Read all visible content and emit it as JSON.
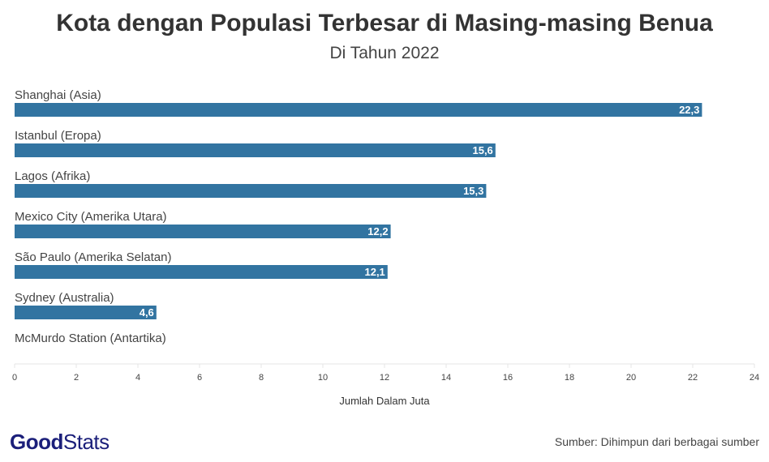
{
  "title": "Kota dengan Populasi Terbesar di Masing-masing Benua",
  "subtitle": "Di Tahun 2022",
  "source": "Sumber: Dihimpun dari berbagai sumber",
  "logo": {
    "part1": "Good",
    "part2": "Stats"
  },
  "chart_data": {
    "type": "bar",
    "orientation": "horizontal",
    "categories": [
      "Shanghai (Asia)",
      "Istanbul (Eropa)",
      "Lagos (Afrika)",
      "Mexico City (Amerika Utara)",
      "São Paulo (Amerika Selatan)",
      "Sydney (Australia)",
      "McMurdo Station (Antartika)"
    ],
    "values": [
      22.3,
      15.6,
      15.3,
      12.2,
      12.1,
      4.6,
      0
    ],
    "data_labels": [
      "22,3",
      "15,6",
      "15,3",
      "12,2",
      "12,1",
      "4,6",
      ""
    ],
    "xlabel": "Jumlah Dalam Juta",
    "xlim": [
      0,
      24
    ],
    "xticks": [
      0,
      2,
      4,
      6,
      8,
      10,
      12,
      14,
      16,
      18,
      20,
      22,
      24
    ],
    "bar_color": "#3274a1",
    "grid": false
  }
}
